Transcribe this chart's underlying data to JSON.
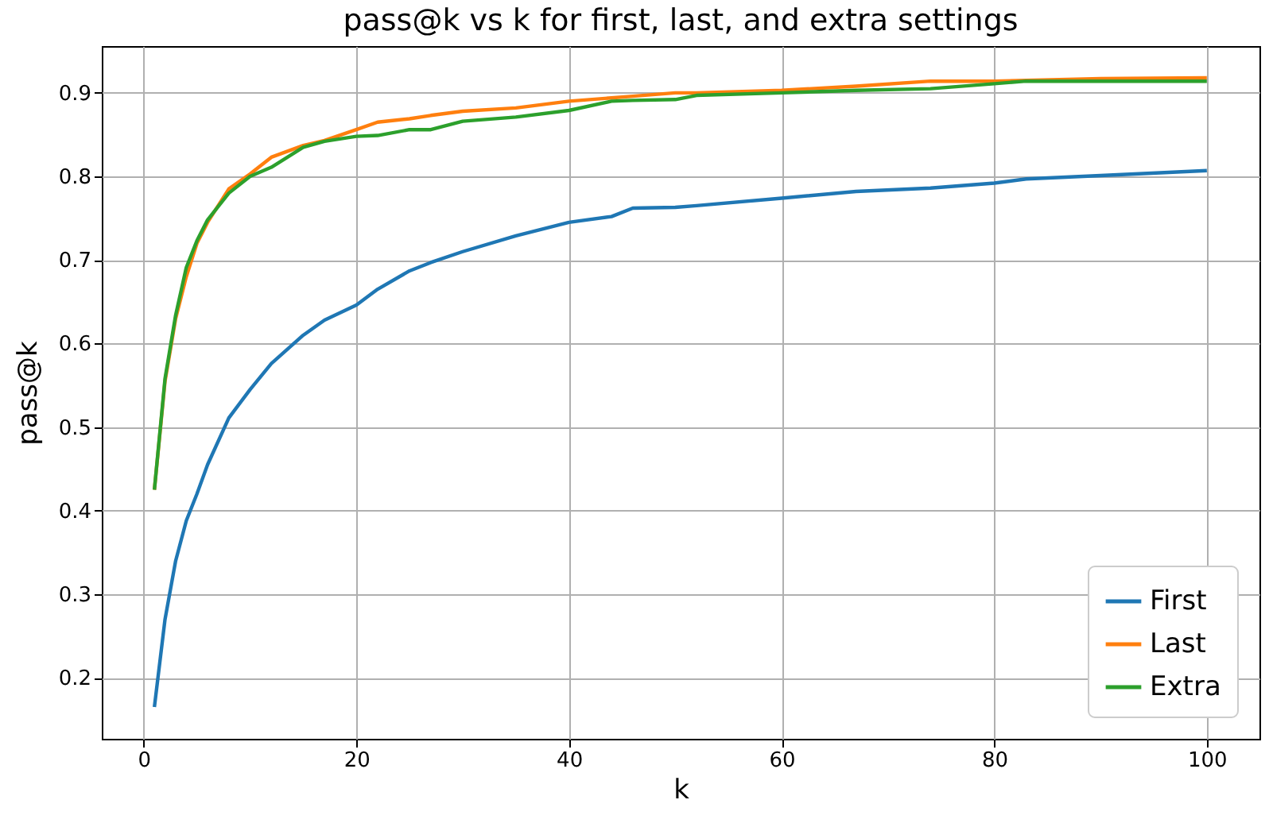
{
  "chart_data": {
    "type": "line",
    "title": "pass@k vs k for first, last, and extra settings",
    "xlabel": "k",
    "ylabel": "pass@k",
    "x": [
      1,
      2,
      3,
      4,
      5,
      6,
      8,
      10,
      12,
      15,
      17,
      20,
      22,
      25,
      27,
      30,
      35,
      40,
      44,
      46,
      50,
      52,
      60,
      67,
      74,
      80,
      83,
      90,
      100
    ],
    "series": [
      {
        "name": "First",
        "color": "#1f77b4",
        "values": [
          0.165,
          0.27,
          0.34,
          0.388,
          0.42,
          0.455,
          0.511,
          0.545,
          0.576,
          0.61,
          0.628,
          0.646,
          0.665,
          0.687,
          0.697,
          0.71,
          0.729,
          0.745,
          0.752,
          0.762,
          0.763,
          0.765,
          0.774,
          0.782,
          0.786,
          0.792,
          0.797,
          0.801,
          0.807
        ]
      },
      {
        "name": "Last",
        "color": "#ff7f0e",
        "values": [
          0.425,
          0.555,
          0.63,
          0.68,
          0.72,
          0.745,
          0.785,
          0.803,
          0.823,
          0.837,
          0.843,
          0.856,
          0.865,
          0.869,
          0.873,
          0.878,
          0.882,
          0.89,
          0.894,
          0.896,
          0.9,
          0.9,
          0.903,
          0.908,
          0.914,
          0.914,
          0.915,
          0.917,
          0.918
        ]
      },
      {
        "name": "Extra",
        "color": "#2ca02c",
        "values": [
          0.425,
          0.558,
          0.634,
          0.691,
          0.723,
          0.748,
          0.78,
          0.8,
          0.811,
          0.835,
          0.842,
          0.848,
          0.849,
          0.856,
          0.856,
          0.866,
          0.871,
          0.879,
          0.89,
          0.891,
          0.892,
          0.897,
          0.9,
          0.903,
          0.905,
          0.911,
          0.914,
          0.914,
          0.914
        ]
      }
    ],
    "xlim": [
      -3.95,
      104.95
    ],
    "xticks": [
      0,
      20,
      40,
      60,
      80,
      100
    ],
    "ylim": [
      0.127,
      0.956
    ],
    "yticks": [
      0.2,
      0.3,
      0.4,
      0.5,
      0.6,
      0.7,
      0.8,
      0.9
    ],
    "grid": true,
    "legend": "bottom right",
    "line_style": "solid",
    "marker": "none"
  }
}
